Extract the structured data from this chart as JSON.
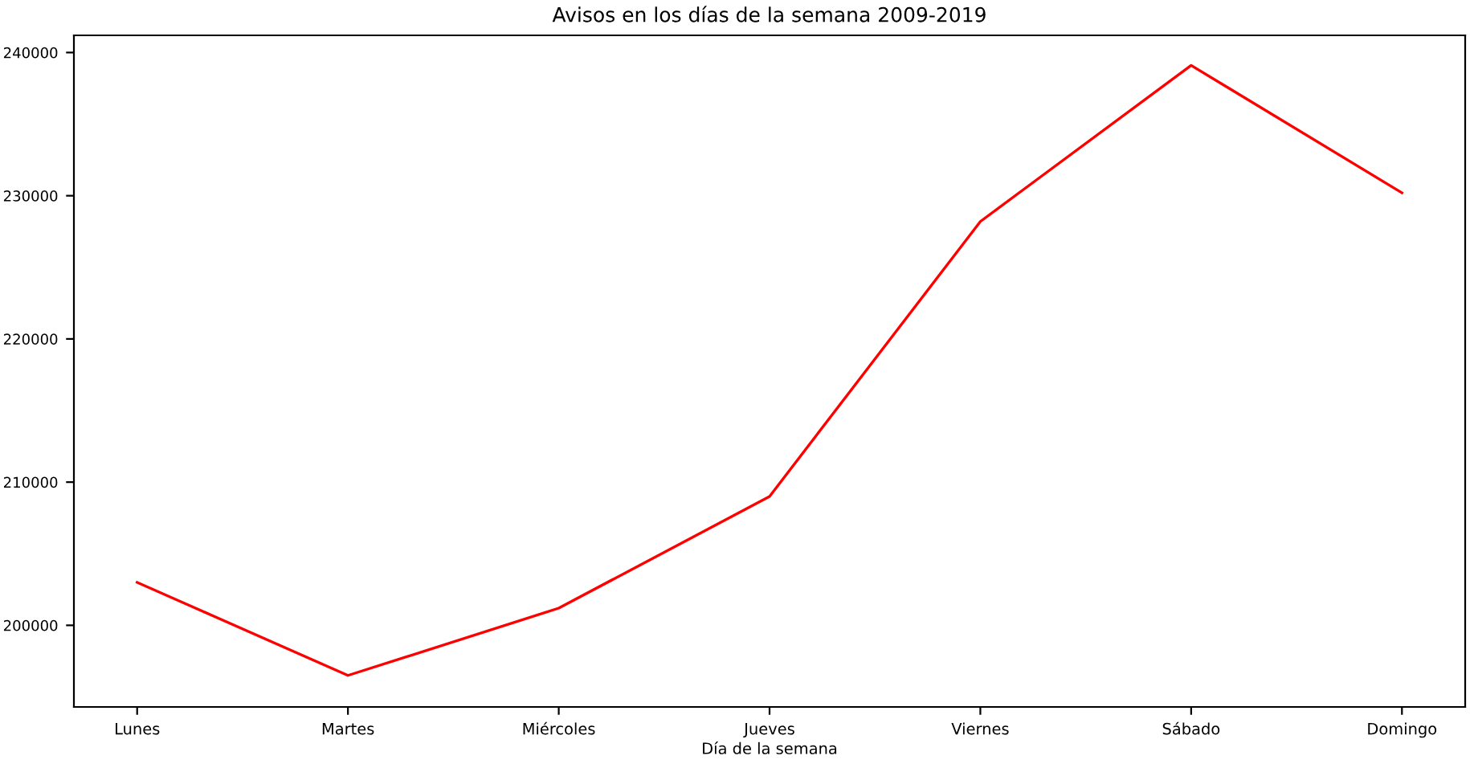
{
  "chart_data": {
    "type": "line",
    "title": "Avisos en los días de la semana 2009-2019",
    "xlabel": "Día de la semana",
    "categories": [
      "Lunes",
      "Martes",
      "Miércoles",
      "Jueves",
      "Viernes",
      "Sábado",
      "Domingo"
    ],
    "series": [
      {
        "color": "#ff0000",
        "values": [
          203000,
          196500,
          201200,
          209000,
          228200,
          239100,
          230200
        ]
      }
    ],
    "ylim": [
      194300,
      241200
    ],
    "yticks": [
      200000,
      210000,
      220000,
      230000,
      240000
    ],
    "grid": false,
    "legend": false
  }
}
